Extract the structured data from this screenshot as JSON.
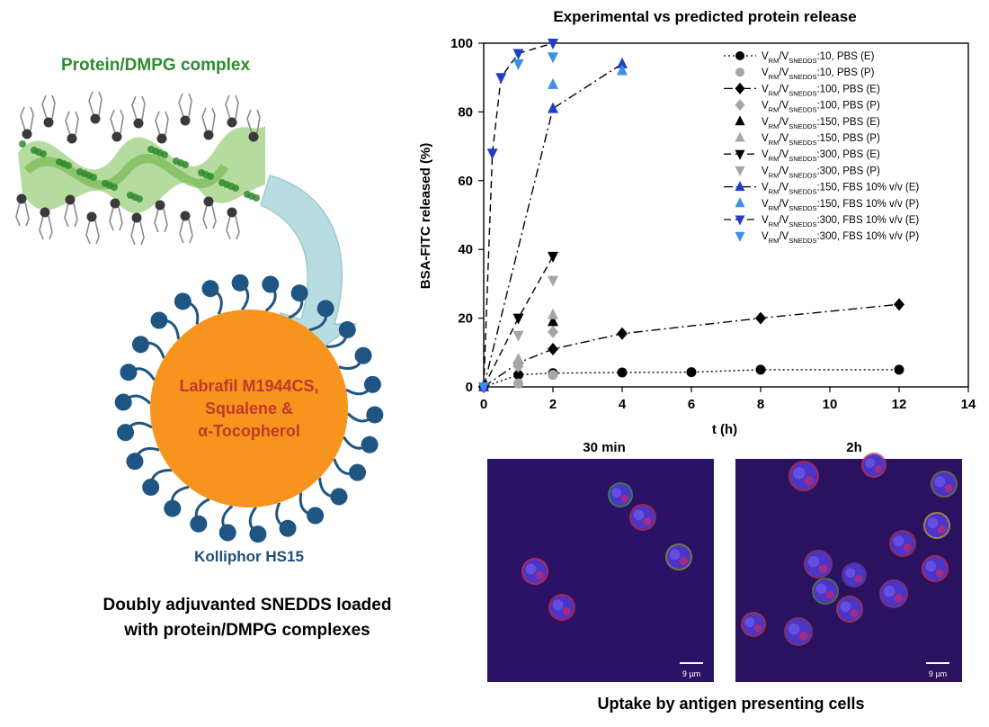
{
  "schematic": {
    "complex_label": "Protein/DMPG  complex",
    "core_lines": [
      "Labrafil M1944CS,",
      "Squalene &",
      "α-Tocopherol"
    ],
    "surfactant_label": "Kolliphor HS15",
    "caption_lines": [
      "Doubly adjuvanted SNEDDS loaded",
      "with protein/DMPG  complexes"
    ],
    "colors": {
      "complex_green": "#2e8b2e",
      "core_orange": "#f7941d",
      "core_text": "#c0392b",
      "shell_blue": "#1f5582",
      "label_blue": "#1f4e79",
      "arrow_fill": "#b7dde0"
    }
  },
  "chart_data": {
    "type": "scatter",
    "title": "Experimental vs predicted protein release",
    "xlabel": "t (h)",
    "ylabel": "BSA-FITC released (%)",
    "xlim": [
      0,
      14
    ],
    "ylim": [
      0,
      100
    ],
    "xticks": [
      "0",
      "2",
      "4",
      "6",
      "8",
      "10",
      "12",
      "14"
    ],
    "yticks": [
      "0",
      "20",
      "40",
      "60",
      "80",
      "100"
    ],
    "grid": false,
    "legend_position": "top-right",
    "legend_label_parts": {
      "v1": "V",
      "sub1": "RM",
      "slash": "/",
      "v2": "V",
      "sub2": "SNEDDS"
    },
    "series": [
      {
        "label": ":10, PBS (E)",
        "marker": "circle",
        "color": "#000000",
        "line": "dot",
        "x": [
          0,
          1,
          2,
          4,
          6,
          8,
          12
        ],
        "y": [
          0,
          3.5,
          4,
          4.2,
          4.3,
          5,
          5
        ]
      },
      {
        "label": ":10, PBS (P)",
        "marker": "circle",
        "color": "#a6a6a6",
        "line": "none",
        "x": [
          1,
          2
        ],
        "y": [
          1,
          3.5
        ]
      },
      {
        "label": ":100, PBS (E)",
        "marker": "diamond",
        "color": "#000000",
        "line": "dashdot",
        "x": [
          0,
          1,
          2,
          4,
          8,
          12
        ],
        "y": [
          0,
          7,
          11,
          15.5,
          20,
          24
        ]
      },
      {
        "label": ":100, PBS (P)",
        "marker": "diamond",
        "color": "#a6a6a6",
        "line": "none",
        "x": [
          1,
          2
        ],
        "y": [
          6,
          16
        ]
      },
      {
        "label": ":150, PBS (E)",
        "marker": "triangle",
        "color": "#000000",
        "line": "none",
        "x": [
          1,
          2
        ],
        "y": [
          8,
          19
        ]
      },
      {
        "label": ":150, PBS (P)",
        "marker": "triangle",
        "color": "#a6a6a6",
        "line": "none",
        "x": [
          1,
          2
        ],
        "y": [
          8,
          21
        ]
      },
      {
        "label": ":300, PBS (E)",
        "marker": "tri-down",
        "color": "#000000",
        "line": "dash",
        "x": [
          0,
          1,
          2
        ],
        "y": [
          0,
          20,
          38
        ]
      },
      {
        "label": ":300, PBS (P)",
        "marker": "tri-down",
        "color": "#a6a6a6",
        "line": "none",
        "x": [
          1,
          2
        ],
        "y": [
          15,
          31
        ]
      },
      {
        "label": ":150, FBS 10% v/v (E)",
        "marker": "triangle",
        "color": "#1f3ec7",
        "line": "dashdot",
        "x": [
          0,
          2,
          4
        ],
        "y": [
          0,
          81,
          94
        ]
      },
      {
        "label": ":150, FBS 10% v/v (P)",
        "marker": "triangle",
        "color": "#3d8fe8",
        "line": "none",
        "x": [
          2,
          4
        ],
        "y": [
          88,
          92
        ]
      },
      {
        "label": ":300, FBS 10% v/v (E)",
        "marker": "tri-down",
        "color": "#1f3ec7",
        "line": "dash",
        "x": [
          0,
          0.25,
          0.5,
          1,
          2
        ],
        "y": [
          0,
          68,
          90,
          97,
          100
        ]
      },
      {
        "label": ":300, FBS 10% v/v (P)",
        "marker": "tri-down",
        "color": "#3d8fe8",
        "line": "none",
        "x": [
          0,
          1,
          2
        ],
        "y": [
          0,
          94,
          96
        ]
      }
    ]
  },
  "micrographs": {
    "titles": [
      "30 min",
      "2h"
    ],
    "scale_bar_label": "9 µm",
    "caption": "Uptake by antigen presenting cells"
  }
}
